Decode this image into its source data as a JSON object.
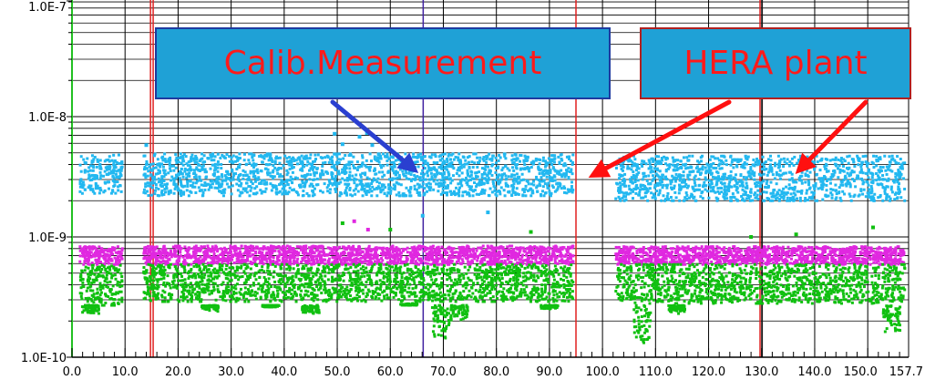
{
  "chart_data": {
    "type": "scatter",
    "title": "",
    "xlabel": "",
    "ylabel": "",
    "y_scale": "log",
    "xlim": [
      0,
      157.7
    ],
    "ylim": [
      1e-10,
      1e-07
    ],
    "x_tick_labels": [
      "0.0",
      "10.0",
      "20.0",
      "30.0",
      "40.0",
      "50.0",
      "60.0",
      "70.0",
      "80.0",
      "90.0",
      "100.0",
      "110.0",
      "120.0",
      "130.0",
      "140.0",
      "150.0",
      "157.7"
    ],
    "x_ticks": [
      0,
      10,
      20,
      30,
      40,
      50,
      60,
      70,
      80,
      90,
      100,
      110,
      120,
      130,
      140,
      150,
      157.7
    ],
    "y_tick_labels": [
      "1.0E-10",
      "1.0E-9",
      "1.0E-8",
      "1.0E-7"
    ],
    "y_ticks": [
      1e-10,
      1e-09,
      1e-08,
      1e-07
    ],
    "grid": true,
    "vertical_markers": [
      {
        "x": 14.8,
        "color": "#e02020"
      },
      {
        "x": 15.3,
        "color": "#e02020"
      },
      {
        "x": 66.2,
        "color": "#4020a0"
      },
      {
        "x": 95.0,
        "color": "#e02020"
      },
      {
        "x": 129.7,
        "color": "#e02020"
      },
      {
        "x": 130.1,
        "color": "#1a1a1a"
      }
    ],
    "series": [
      {
        "color": "#22b8f0",
        "segments": [
          {
            "x_start": 1.5,
            "x_end": 9.5,
            "y_min": 2.3e-09,
            "y_max": 4.8e-09
          },
          {
            "x_start": 13.5,
            "x_end": 94.5,
            "y_min": 2.2e-09,
            "y_max": 4.9e-09
          },
          {
            "x_start": 102.5,
            "x_end": 157.0,
            "y_min": 2e-09,
            "y_max": 4.7e-09
          }
        ],
        "outliers": [
          [
            49.5,
            7.2e-09
          ],
          [
            54.2,
            6.8e-09
          ],
          [
            55.6,
            7.3e-09
          ],
          [
            51.0,
            5.9e-09
          ],
          [
            56.6,
            5.8e-09
          ],
          [
            66.1,
            1.5e-09
          ],
          [
            78.4,
            1.6e-09
          ],
          [
            14.0,
            5.8e-09
          ]
        ]
      },
      {
        "color": "#e028e0",
        "segments": [
          {
            "x_start": 1.5,
            "x_end": 9.5,
            "y_min": 5.9e-10,
            "y_max": 8.3e-10
          },
          {
            "x_start": 13.5,
            "x_end": 94.5,
            "y_min": 5.9e-10,
            "y_max": 8.4e-10
          },
          {
            "x_start": 102.5,
            "x_end": 157.0,
            "y_min": 5.9e-10,
            "y_max": 8.3e-10
          }
        ],
        "outliers": [
          [
            53.2,
            1.35e-09
          ],
          [
            55.8,
            1.15e-09
          ]
        ]
      },
      {
        "color": "#10c010",
        "segments": [
          {
            "x_start": 1.5,
            "x_end": 9.5,
            "y_min": 2.7e-10,
            "y_max": 5.8e-10
          },
          {
            "x_start": 13.5,
            "x_end": 94.5,
            "y_min": 2.9e-10,
            "y_max": 5.9e-10
          },
          {
            "x_start": 102.5,
            "x_end": 157.0,
            "y_min": 2.8e-10,
            "y_max": 5.9e-10
          }
        ],
        "dips": [
          {
            "x": 3.5,
            "y": 2.3e-10
          },
          {
            "x": 26.0,
            "y": 2.4e-10
          },
          {
            "x": 37.5,
            "y": 2.6e-10
          },
          {
            "x": 45.0,
            "y": 2.3e-10
          },
          {
            "x": 63.5,
            "y": 2.8e-10
          },
          {
            "x": 69.5,
            "y": 1.35e-10
          },
          {
            "x": 73.0,
            "y": 2e-10
          },
          {
            "x": 90.0,
            "y": 2.5e-10
          },
          {
            "x": 107.5,
            "y": 1.3e-10
          },
          {
            "x": 114.0,
            "y": 2.3e-10
          },
          {
            "x": 154.5,
            "y": 1.6e-10
          }
        ],
        "outliers": [
          [
            51.0,
            1.3e-09
          ],
          [
            60.0,
            1.15e-09
          ],
          [
            86.5,
            1.1e-09
          ],
          [
            128.0,
            1e-09
          ],
          [
            136.5,
            1.05e-09
          ],
          [
            151.0,
            1.2e-09
          ]
        ]
      }
    ],
    "annotations": [
      {
        "text": "Calib.Measurement",
        "arrow_color": "#2a3fd0",
        "target": [
          66.0,
          3.9e-09
        ]
      },
      {
        "text": "HERA plant",
        "arrow_color": "#ff1010",
        "targets": [
          [
            97.0,
            2.9e-09
          ],
          [
            136.0,
            3e-09
          ]
        ]
      }
    ]
  }
}
